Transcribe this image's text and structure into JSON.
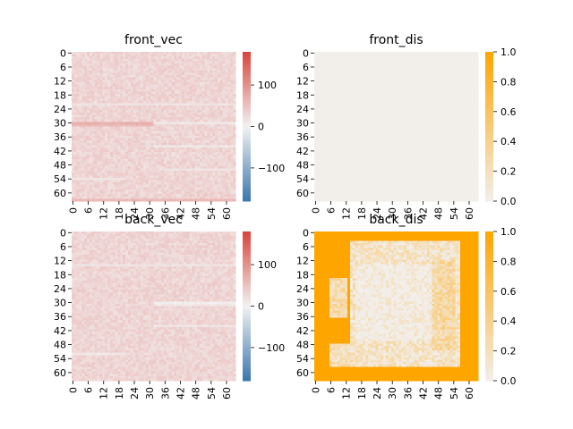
{
  "chart_data": [
    {
      "type": "heatmap",
      "title": "front_vec",
      "rows": 64,
      "cols": 64,
      "tick_labels": [
        "0",
        "6",
        "12",
        "18",
        "24",
        "30",
        "36",
        "42",
        "48",
        "54",
        "60"
      ],
      "tick_indices": [
        0,
        6,
        12,
        18,
        24,
        30,
        36,
        42,
        48,
        54,
        60
      ],
      "colorbar": {
        "min": -180,
        "max": 180,
        "ticks": [
          -100,
          0,
          100
        ],
        "colormap": "diverging-blue-white-red"
      },
      "pattern": "mostly ~+30 (pale red), brighter band at row 30 for cols 0-31, paler streaks near rows 22, 40, 50, 54",
      "base_value": 30,
      "features": [
        {
          "row": 30,
          "col_start": 0,
          "col_end": 31,
          "value": 70
        },
        {
          "row": 31,
          "col_start": 0,
          "col_end": 31,
          "value": 60
        },
        {
          "row": 30,
          "col_start": 32,
          "col_end": 63,
          "value": 10
        },
        {
          "row": 22,
          "col_start": 0,
          "col_end": 63,
          "value": 15
        },
        {
          "row": 40,
          "col_start": 32,
          "col_end": 63,
          "value": 12
        },
        {
          "row": 54,
          "col_start": 0,
          "col_end": 20,
          "value": 12
        },
        {
          "row": 50,
          "col_start": 34,
          "col_end": 63,
          "value": 15
        },
        {
          "row": 63,
          "col_start": 0,
          "col_end": 63,
          "value": 60
        }
      ]
    },
    {
      "type": "heatmap",
      "title": "front_dis",
      "rows": 64,
      "cols": 64,
      "tick_labels": [
        "0",
        "6",
        "12",
        "18",
        "24",
        "30",
        "36",
        "42",
        "48",
        "54",
        "60"
      ],
      "tick_indices": [
        0,
        6,
        12,
        18,
        24,
        30,
        36,
        42,
        48,
        54,
        60
      ],
      "colorbar": {
        "min": 0,
        "max": 1,
        "ticks": [
          0.0,
          0.2,
          0.4,
          0.6,
          0.8,
          1.0
        ],
        "tick_labels": [
          "0.0",
          "0.2",
          "0.4",
          "0.6",
          "0.8",
          "1.0"
        ],
        "colormap": "white-to-orange"
      },
      "pattern": "all cells ~0",
      "base_value": 0.0,
      "features": []
    },
    {
      "type": "heatmap",
      "title": "back_vec",
      "rows": 64,
      "cols": 64,
      "tick_labels": [
        "0",
        "6",
        "12",
        "18",
        "24",
        "30",
        "36",
        "42",
        "48",
        "54",
        "60"
      ],
      "tick_indices": [
        0,
        6,
        12,
        18,
        24,
        30,
        36,
        42,
        48,
        54,
        60
      ],
      "colorbar": {
        "min": -180,
        "max": 180,
        "ticks": [
          -100,
          0,
          100
        ],
        "colormap": "diverging-blue-white-red"
      },
      "pattern": "mostly ~+30, pale band at row 30 for cols 32-63",
      "base_value": 30,
      "features": [
        {
          "row": 30,
          "col_start": 32,
          "col_end": 63,
          "value": 5
        },
        {
          "row": 31,
          "col_start": 32,
          "col_end": 63,
          "value": 12
        },
        {
          "row": 14,
          "col_start": 0,
          "col_end": 63,
          "value": 15
        },
        {
          "row": 52,
          "col_start": 0,
          "col_end": 20,
          "value": 12
        },
        {
          "row": 40,
          "col_start": 32,
          "col_end": 63,
          "value": 14
        }
      ]
    },
    {
      "type": "heatmap",
      "title": "back_dis",
      "rows": 64,
      "cols": 64,
      "tick_labels": [
        "0",
        "6",
        "12",
        "18",
        "24",
        "30",
        "36",
        "42",
        "48",
        "54",
        "60"
      ],
      "tick_indices": [
        0,
        6,
        12,
        18,
        24,
        30,
        36,
        42,
        48,
        54,
        60
      ],
      "colorbar": {
        "min": 0,
        "max": 1,
        "ticks": [
          0.0,
          0.2,
          0.4,
          0.6,
          0.8,
          1.0
        ],
        "tick_labels": [
          "0.0",
          "0.2",
          "0.4",
          "0.6",
          "0.8",
          "1.0"
        ],
        "colormap": "white-to-orange"
      },
      "pattern": "border ~1.0, interior block ~0.1 spanning rows 4-58, cols 14-56 with irregular edges",
      "base_value": 1.0,
      "features": [
        {
          "row_start": 4,
          "row_end": 58,
          "col_start": 14,
          "col_end": 56,
          "value": 0.15
        },
        {
          "row_start": 14,
          "row_end": 46,
          "col_start": 16,
          "col_end": 46,
          "value": 0.02
        },
        {
          "row_start": 12,
          "row_end": 50,
          "col_start": 46,
          "col_end": 54,
          "value": 0.3
        },
        {
          "row_start": 48,
          "row_end": 58,
          "col_start": 6,
          "col_end": 14,
          "value": 0.2
        },
        {
          "row_start": 20,
          "row_end": 36,
          "col_start": 6,
          "col_end": 12,
          "value": 0.25
        },
        {
          "row_start": 58,
          "row_end": 63,
          "col_start": 0,
          "col_end": 63,
          "value": 1.0
        },
        {
          "row_start": 0,
          "row_end": 3,
          "col_start": 0,
          "col_end": 63,
          "value": 1.0
        }
      ]
    }
  ]
}
